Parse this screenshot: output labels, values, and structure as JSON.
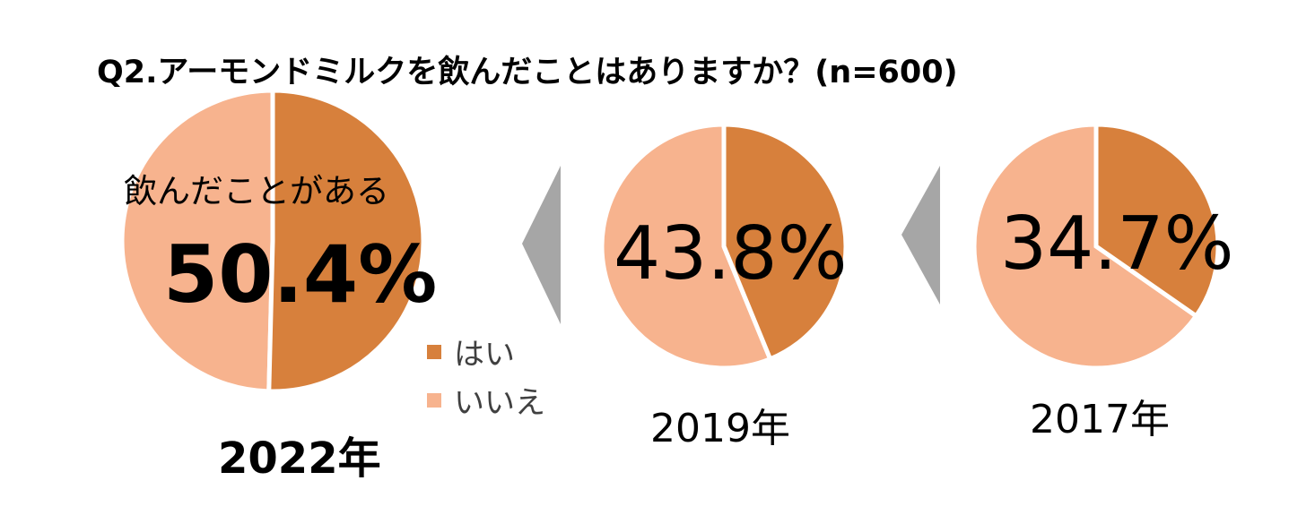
{
  "chart_data": {
    "type": "pie",
    "title": "Q2.アーモンドミルクを飲んだことはありますか？(n=600)",
    "annotation": "飲んだことがある",
    "legend": [
      {
        "label": "はい",
        "color": "#D7803C"
      },
      {
        "label": "いいえ",
        "color": "#F7B38E"
      }
    ],
    "legend_placement": "center",
    "charts": [
      {
        "year_label": "2022年",
        "values": {
          "はい": 50.4,
          "いいえ": 49.6
        },
        "label": "50.4%"
      },
      {
        "year_label": "2019年",
        "values": {
          "はい": 43.8,
          "いいえ": 56.2
        },
        "label": "43.8%"
      },
      {
        "year_label": "2017年",
        "values": {
          "はい": 34.7,
          "いいえ": 65.3
        },
        "label": "34.7%"
      }
    ]
  }
}
